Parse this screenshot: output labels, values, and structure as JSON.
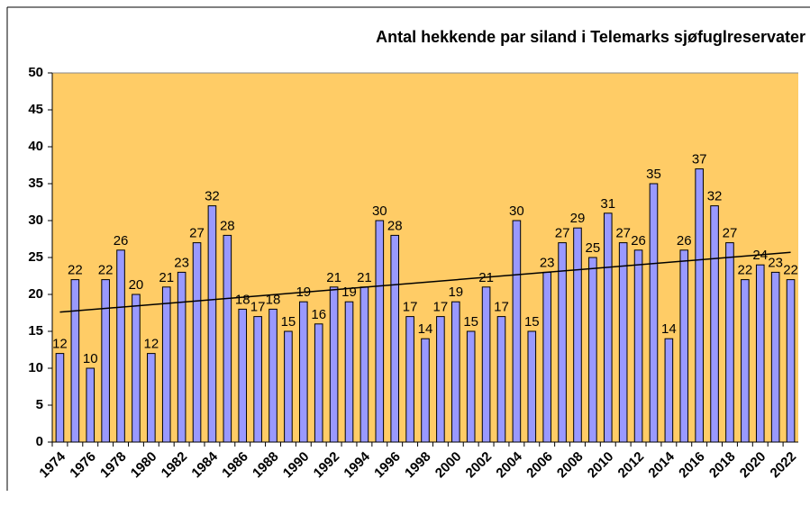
{
  "chart_data": {
    "type": "bar",
    "title": "Antal hekkende par siland i Telemarks sjøfuglreservater",
    "categories": [
      "1974",
      null,
      "1976",
      null,
      "1978",
      null,
      "1980",
      null,
      "1982",
      null,
      "1984",
      null,
      "1986",
      null,
      "1988",
      null,
      "1990",
      null,
      "1992",
      null,
      "1994",
      null,
      "1996",
      null,
      "1998",
      null,
      "2000",
      null,
      "2002",
      null,
      "2004",
      null,
      "2006",
      null,
      "2008",
      null,
      "2010",
      null,
      "2012",
      null,
      "2014",
      null,
      "2016",
      null,
      "2018",
      null,
      "2020",
      null,
      "2022"
    ],
    "values": [
      12,
      22,
      10,
      22,
      26,
      20,
      12,
      21,
      23,
      27,
      32,
      28,
      18,
      17,
      18,
      15,
      19,
      16,
      21,
      19,
      21,
      30,
      28,
      17,
      14,
      17,
      19,
      15,
      21,
      17,
      30,
      15,
      23,
      27,
      29,
      25,
      31,
      27,
      26,
      35,
      14,
      26,
      37,
      32,
      27,
      22,
      24,
      23,
      22
    ],
    "color": "#9999ff",
    "background": "#ffcc66",
    "trendline": [
      17.6,
      25.7
    ],
    "ylim": [
      0,
      50
    ],
    "yticks": [
      0,
      5,
      10,
      15,
      20,
      25,
      30,
      35,
      40,
      45,
      50
    ],
    "grid": false
  }
}
